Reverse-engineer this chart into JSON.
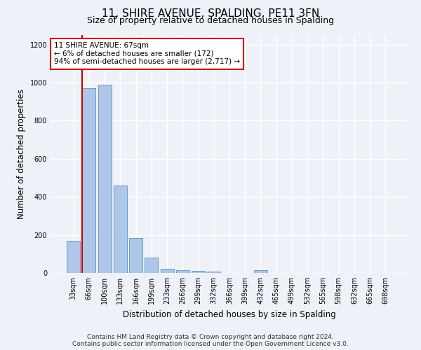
{
  "title": "11, SHIRE AVENUE, SPALDING, PE11 3FN",
  "subtitle": "Size of property relative to detached houses in Spalding",
  "xlabel": "Distribution of detached houses by size in Spalding",
  "ylabel": "Number of detached properties",
  "categories": [
    "33sqm",
    "66sqm",
    "100sqm",
    "133sqm",
    "166sqm",
    "199sqm",
    "233sqm",
    "266sqm",
    "299sqm",
    "332sqm",
    "366sqm",
    "399sqm",
    "432sqm",
    "465sqm",
    "499sqm",
    "532sqm",
    "565sqm",
    "598sqm",
    "632sqm",
    "665sqm",
    "698sqm"
  ],
  "values": [
    170,
    970,
    990,
    460,
    185,
    80,
    22,
    16,
    11,
    8,
    0,
    0,
    15,
    0,
    0,
    0,
    0,
    0,
    0,
    0,
    0
  ],
  "bar_color": "#aec6e8",
  "bar_edge_color": "#5a8fc2",
  "annotation_line1": "11 SHIRE AVENUE: 67sqm",
  "annotation_line2": "← 6% of detached houses are smaller (172)",
  "annotation_line3": "94% of semi-detached houses are larger (2,717) →",
  "annotation_box_color": "#ffffff",
  "annotation_box_edge_color": "#cc0000",
  "marker_line_color": "#cc0000",
  "ylim": [
    0,
    1250
  ],
  "yticks": [
    0,
    200,
    400,
    600,
    800,
    1000,
    1200
  ],
  "footer_line1": "Contains HM Land Registry data © Crown copyright and database right 2024.",
  "footer_line2": "Contains public sector information licensed under the Open Government Licence v3.0.",
  "background_color": "#eef2f8",
  "grid_color": "#ffffff",
  "title_fontsize": 11,
  "subtitle_fontsize": 9,
  "xlabel_fontsize": 8.5,
  "ylabel_fontsize": 8.5,
  "tick_fontsize": 7,
  "annotation_fontsize": 7.5,
  "footer_fontsize": 6.5
}
